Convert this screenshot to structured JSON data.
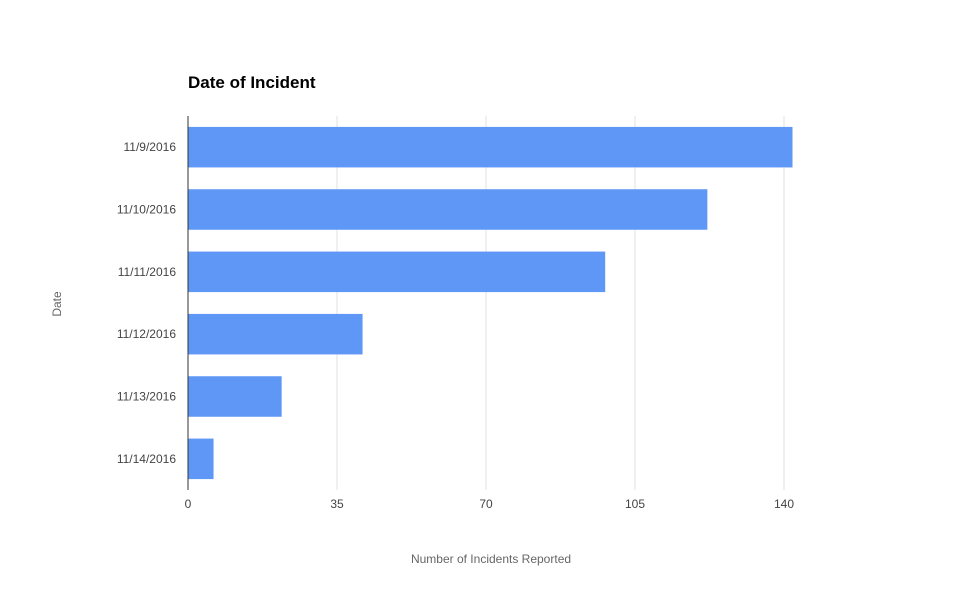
{
  "chart_data": {
    "type": "bar",
    "orientation": "horizontal",
    "title": "Date of Incident",
    "xlabel": "Number of Incidents Reported",
    "ylabel": "Date",
    "categories": [
      "11/9/2016",
      "11/10/2016",
      "11/11/2016",
      "11/12/2016",
      "11/13/2016",
      "11/14/2016"
    ],
    "values": [
      142,
      122,
      98,
      41,
      22,
      6
    ],
    "xlim": [
      0,
      140
    ],
    "xticks": [
      "0",
      "35",
      "70",
      "105",
      "140"
    ],
    "grid": true,
    "legend": "none",
    "bar_color": "#5e97f6"
  }
}
